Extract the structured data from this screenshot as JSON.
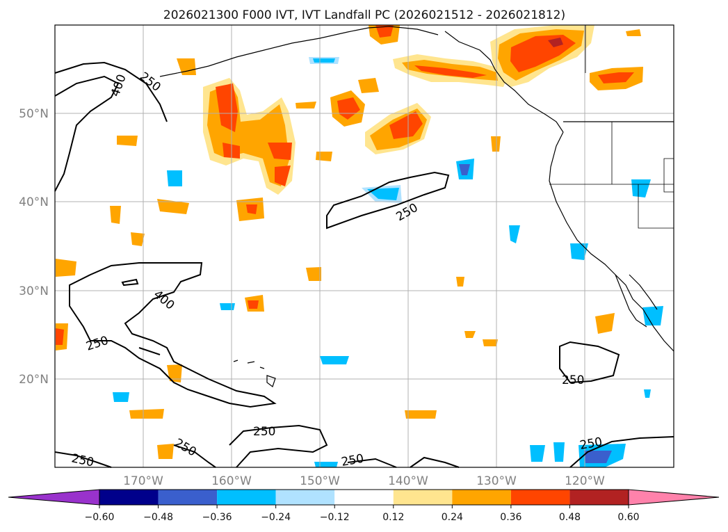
{
  "title": "2026021300 F000 IVT, IVT Landfall PC (2026021512 - 2026021812)",
  "map": {
    "lat_labels": [
      "50°N",
      "40°N",
      "30°N",
      "20°N"
    ],
    "lon_labels": [
      "170°W",
      "160°W",
      "150°W",
      "140°W",
      "130°W",
      "120°W"
    ],
    "gridlines": true
  },
  "colorbar": {
    "ticks": [
      "−0.60",
      "−0.48",
      "−0.36",
      "−0.24",
      "−0.12",
      "0.12",
      "0.24",
      "0.36",
      "0.48",
      "0.60"
    ],
    "colors": [
      "#9932cc",
      "#00008b",
      "#3a5fcd",
      "#00bfff",
      "#b0e2ff",
      "#ffffff",
      "#ffe58f",
      "#ffa500",
      "#ff4500",
      "#b22222",
      "#ff82ab"
    ],
    "extend": "both"
  },
  "ivt_contours": {
    "labels": [
      "250",
      "400",
      "250",
      "250",
      "400",
      "250",
      "250",
      "250",
      "250",
      "250",
      "250"
    ]
  },
  "colors": {
    "coast": "#000000",
    "grid": "#b0b0b0",
    "contour": "#000000"
  }
}
